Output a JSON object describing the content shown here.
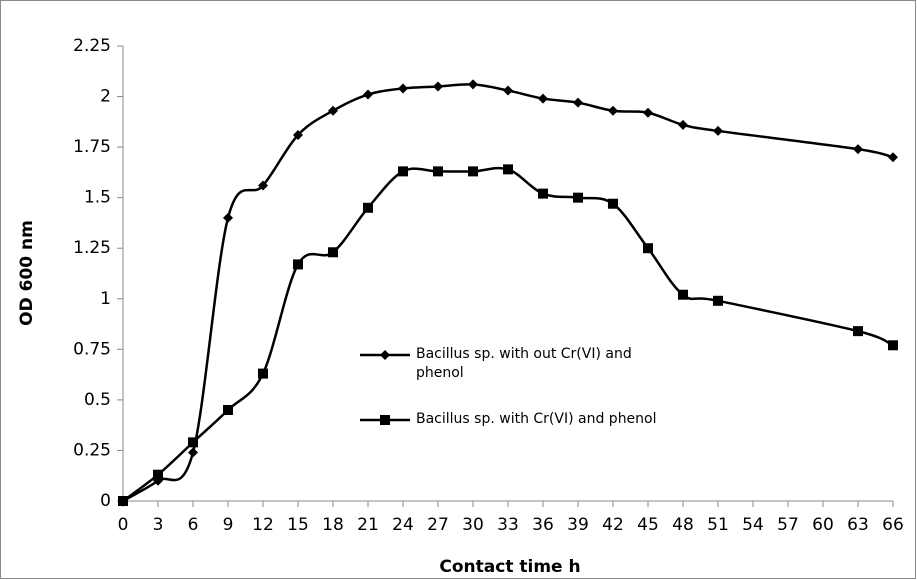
{
  "chart_data": {
    "type": "line",
    "x_label": "Contact time h",
    "y_label": "OD 600 nm",
    "xlim": [
      0,
      66
    ],
    "xticks": [
      0,
      3,
      6,
      9,
      12,
      15,
      18,
      21,
      24,
      27,
      30,
      33,
      36,
      39,
      42,
      45,
      48,
      51,
      54,
      57,
      60,
      63,
      66
    ],
    "ylim": [
      0,
      2.25
    ],
    "yticks": [
      0,
      0.25,
      0.5,
      0.75,
      1,
      1.25,
      1.5,
      1.75,
      2,
      2.25
    ],
    "grid": false,
    "series": [
      {
        "name": "Bacillus sp. with out Cr(VI) and phenol",
        "color": "#000000",
        "marker": "diamond",
        "x": [
          0,
          3,
          6,
          9,
          12,
          15,
          18,
          21,
          24,
          27,
          30,
          33,
          36,
          39,
          42,
          45,
          48,
          51,
          63,
          66
        ],
        "values": [
          0,
          0.1,
          0.24,
          1.4,
          1.56,
          1.81,
          1.93,
          2.01,
          2.04,
          2.05,
          2.06,
          2.03,
          1.99,
          1.97,
          1.93,
          1.92,
          1.86,
          1.83,
          1.74,
          1.7
        ]
      },
      {
        "name": "Bacillus sp. with Cr(VI) and phenol",
        "color": "#000000",
        "marker": "square",
        "x": [
          0,
          3,
          6,
          9,
          12,
          15,
          18,
          21,
          24,
          27,
          30,
          33,
          36,
          39,
          42,
          45,
          48,
          51,
          63,
          66
        ],
        "values": [
          0,
          0.13,
          0.29,
          0.45,
          0.63,
          1.17,
          1.23,
          1.45,
          1.63,
          1.63,
          1.63,
          1.64,
          1.52,
          1.5,
          1.47,
          1.25,
          1.02,
          0.99,
          0.84,
          0.77
        ]
      }
    ]
  }
}
